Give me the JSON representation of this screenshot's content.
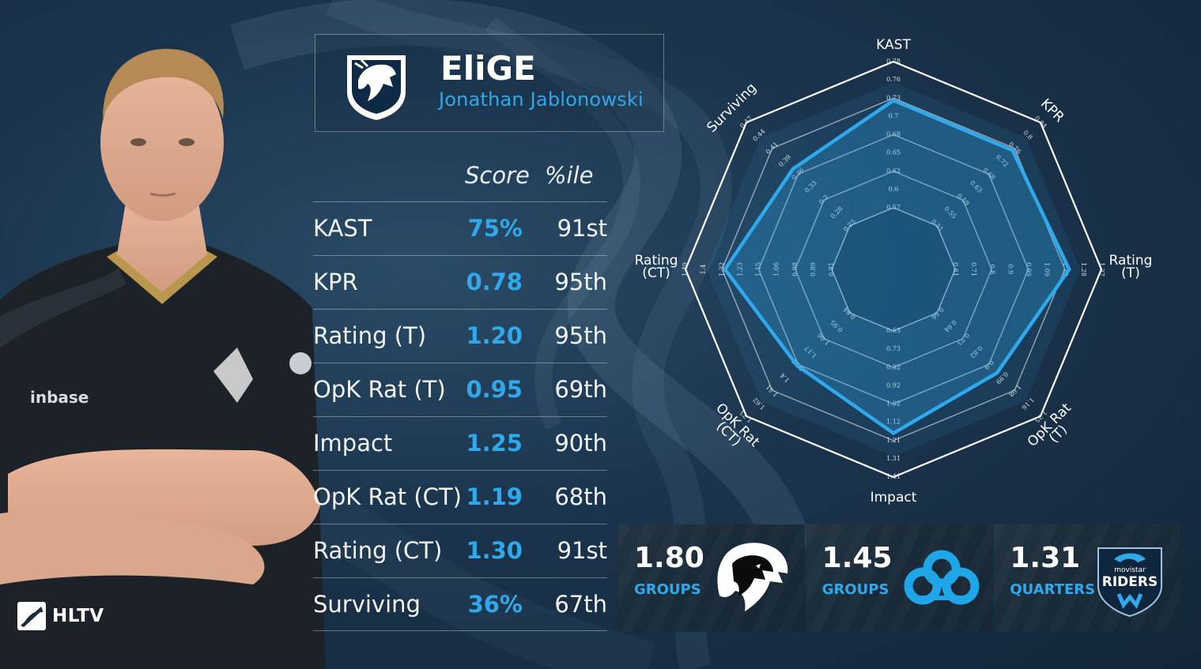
{
  "player": {
    "nickname": "EliGE",
    "real_name": "Jonathan Jablonowski",
    "team_logo_icon": "team-liquid-horse-icon",
    "jersey_sponsor_text": "inbase"
  },
  "branding": {
    "site_name": "HLTV"
  },
  "table": {
    "headers": {
      "score": "Score",
      "percentile": "%ile"
    },
    "rows": [
      {
        "label": "KAST",
        "score": "75%",
        "percentile": "91st"
      },
      {
        "label": "KPR",
        "score": "0.78",
        "percentile": "95th"
      },
      {
        "label": "Rating (T)",
        "score": "1.20",
        "percentile": "95th"
      },
      {
        "label": "OpK Rat (T)",
        "score": "0.95",
        "percentile": "69th"
      },
      {
        "label": "Impact",
        "score": "1.25",
        "percentile": "90th"
      },
      {
        "label": "OpK Rat (CT)",
        "score": "1.19",
        "percentile": "68th"
      },
      {
        "label": "Rating (CT)",
        "score": "1.30",
        "percentile": "91st"
      },
      {
        "label": "Surviving",
        "score": "36%",
        "percentile": "67th"
      }
    ]
  },
  "radar": {
    "axes": [
      {
        "label": "KAST",
        "ticks": [
          "0.57",
          "0.6",
          "0.62",
          "0.65",
          "0.68",
          "0.7",
          "0.73",
          "0.76",
          "0.78"
        ],
        "value_level": 0.735
      },
      {
        "label": "KPR",
        "ticks": [
          "0.51",
          "0.55",
          "0.59",
          "0.63",
          "0.68",
          "0.72",
          "0.76",
          "0.8",
          "0.84"
        ],
        "value_level": 0.73
      },
      {
        "label": "Rating (T)",
        "ticks": [
          "0.61",
          "0.71",
          "0.8",
          "0.9",
          "0.99",
          "1.09",
          "1.18",
          "1.28",
          "1.37"
        ],
        "value_level": 0.78
      },
      {
        "label": "OpK Rat (T)",
        "ticks": [
          "0.56",
          "0.64",
          "0.73",
          "0.82",
          "0.9",
          "0.99",
          "1.08",
          "1.16",
          "1.25"
        ],
        "value_level": 0.58
      },
      {
        "label": "Impact",
        "ticks": [
          "0.63",
          "0.73",
          "0.82",
          "0.92",
          "1.02",
          "1.12",
          "1.21",
          "1.31",
          "1.41"
        ],
        "value_level": 0.7
      },
      {
        "label": "OpK Rat (CT)",
        "ticks": [
          "0.84",
          "0.95",
          "1.06",
          "1.17",
          "1.29",
          "1.4",
          "1.51",
          "1.62",
          "1.73"
        ],
        "value_level": 0.51
      },
      {
        "label": "Rating (CT)",
        "ticks": [
          "0.81",
          "0.89",
          "0.98",
          "1.06",
          "1.15",
          "1.23",
          "1.32",
          "1.4",
          "1.49"
        ],
        "value_level": 0.73
      },
      {
        "label": "Surviving",
        "ticks": [
          "0.25",
          "0.28",
          "0.3",
          "0.33",
          "0.36",
          "0.39",
          "0.41",
          "0.44",
          "0.47"
        ],
        "value_level": 0.55
      }
    ],
    "colors": {
      "ring": "#ffffff",
      "value": "#2fa8ec"
    }
  },
  "events": [
    {
      "rating": "1.80",
      "stage": "GROUPS",
      "logo_icon": "furia-panther-icon"
    },
    {
      "rating": "1.45",
      "stage": "GROUPS",
      "logo_icon": "cloud9-icon"
    },
    {
      "rating": "1.31",
      "stage": "QUARTERS",
      "logo_icon": "movistar-riders-icon",
      "logo_text_top": "movistar",
      "logo_text_main": "RIDERS"
    }
  ]
}
